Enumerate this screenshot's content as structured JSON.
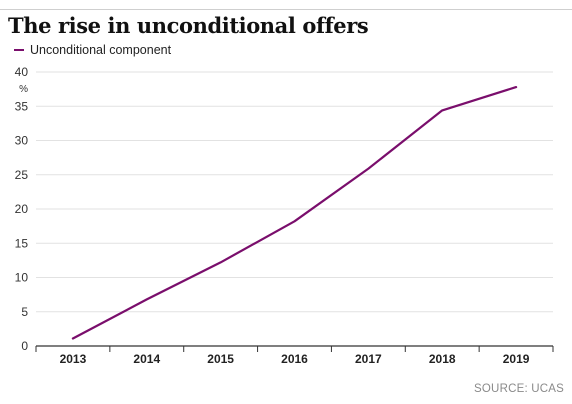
{
  "title": "The rise in unconditional offers",
  "source": "SOURCE: UCAS",
  "colors": {
    "series": "#7a0e6c",
    "grid": "#e2e2e2",
    "axis": "#333333"
  },
  "chart_data": {
    "type": "line",
    "title": "The rise in unconditional offers",
    "xlabel": "",
    "ylabel": "%",
    "ylim": [
      0,
      40
    ],
    "yticks": [
      0,
      5,
      10,
      15,
      20,
      25,
      30,
      35,
      40
    ],
    "categories": [
      "2013",
      "2014",
      "2015",
      "2016",
      "2017",
      "2018",
      "2019"
    ],
    "series": [
      {
        "name": "Unconditional component",
        "values": [
          1.1,
          6.8,
          12.2,
          18.2,
          25.9,
          34.4,
          37.8
        ]
      }
    ],
    "grid": true,
    "legend": "top-left"
  }
}
